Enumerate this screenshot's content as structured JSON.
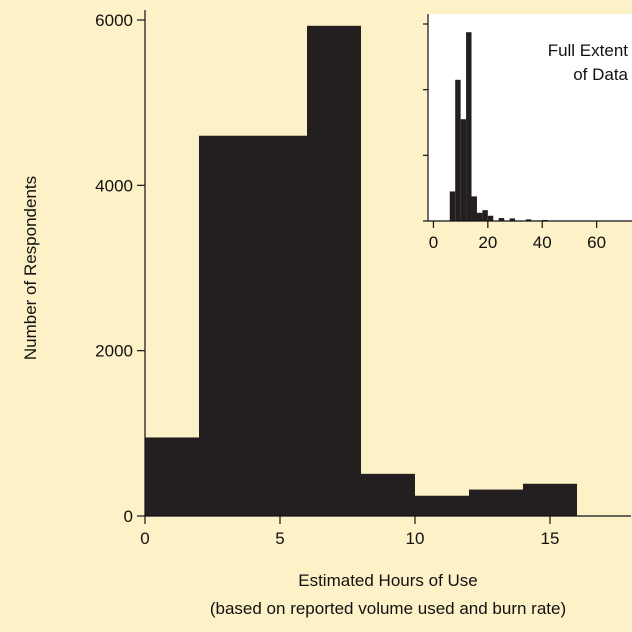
{
  "colors": {
    "background": "#fdf1c7",
    "bar": "#231f20",
    "inset_background": "#ffffff"
  },
  "chart_data": [
    {
      "type": "bar",
      "role": "main",
      "xlabel": "Estimated Hours of Use",
      "xlabel_line2": "(based on reported volume used and burn rate)",
      "ylabel": "Number of Respondents",
      "xlim": [
        0,
        18
      ],
      "ylim": [
        0,
        6000
      ],
      "x_ticks": [
        0,
        5,
        10,
        15
      ],
      "y_ticks": [
        0,
        2000,
        4000,
        6000
      ],
      "bins": [
        {
          "x0": 0,
          "x1": 2,
          "value": 950
        },
        {
          "x0": 2,
          "x1": 6,
          "value": 4600
        },
        {
          "x0": 6,
          "x1": 8,
          "value": 5930
        },
        {
          "x0": 8,
          "x1": 10,
          "value": 510
        },
        {
          "x0": 10,
          "x1": 12,
          "value": 245
        },
        {
          "x0": 12,
          "x1": 14,
          "value": 320
        },
        {
          "x0": 14,
          "x1": 16,
          "value": 390
        }
      ]
    },
    {
      "type": "bar",
      "role": "inset",
      "title_line1": "Full Extent",
      "title_line2": "of Data",
      "xlim": [
        -2,
        73
      ],
      "ylim": [
        0,
        6000
      ],
      "x_ticks": [
        0,
        20,
        40,
        60
      ],
      "y_ticks": [
        0,
        2000,
        4000,
        6000
      ],
      "bins": [
        {
          "x0": 6,
          "x1": 8,
          "value": 900
        },
        {
          "x0": 8,
          "x1": 10,
          "value": 4300
        },
        {
          "x0": 10,
          "x1": 12,
          "value": 3100
        },
        {
          "x0": 12,
          "x1": 14,
          "value": 5750
        },
        {
          "x0": 14,
          "x1": 16,
          "value": 750
        },
        {
          "x0": 16,
          "x1": 18,
          "value": 250
        },
        {
          "x0": 18,
          "x1": 20,
          "value": 330
        },
        {
          "x0": 20,
          "x1": 22,
          "value": 160
        },
        {
          "x0": 24,
          "x1": 26,
          "value": 90
        },
        {
          "x0": 28,
          "x1": 30,
          "value": 80
        },
        {
          "x0": 34,
          "x1": 36,
          "value": 50
        },
        {
          "x0": 40,
          "x1": 42,
          "value": 30
        }
      ]
    }
  ]
}
